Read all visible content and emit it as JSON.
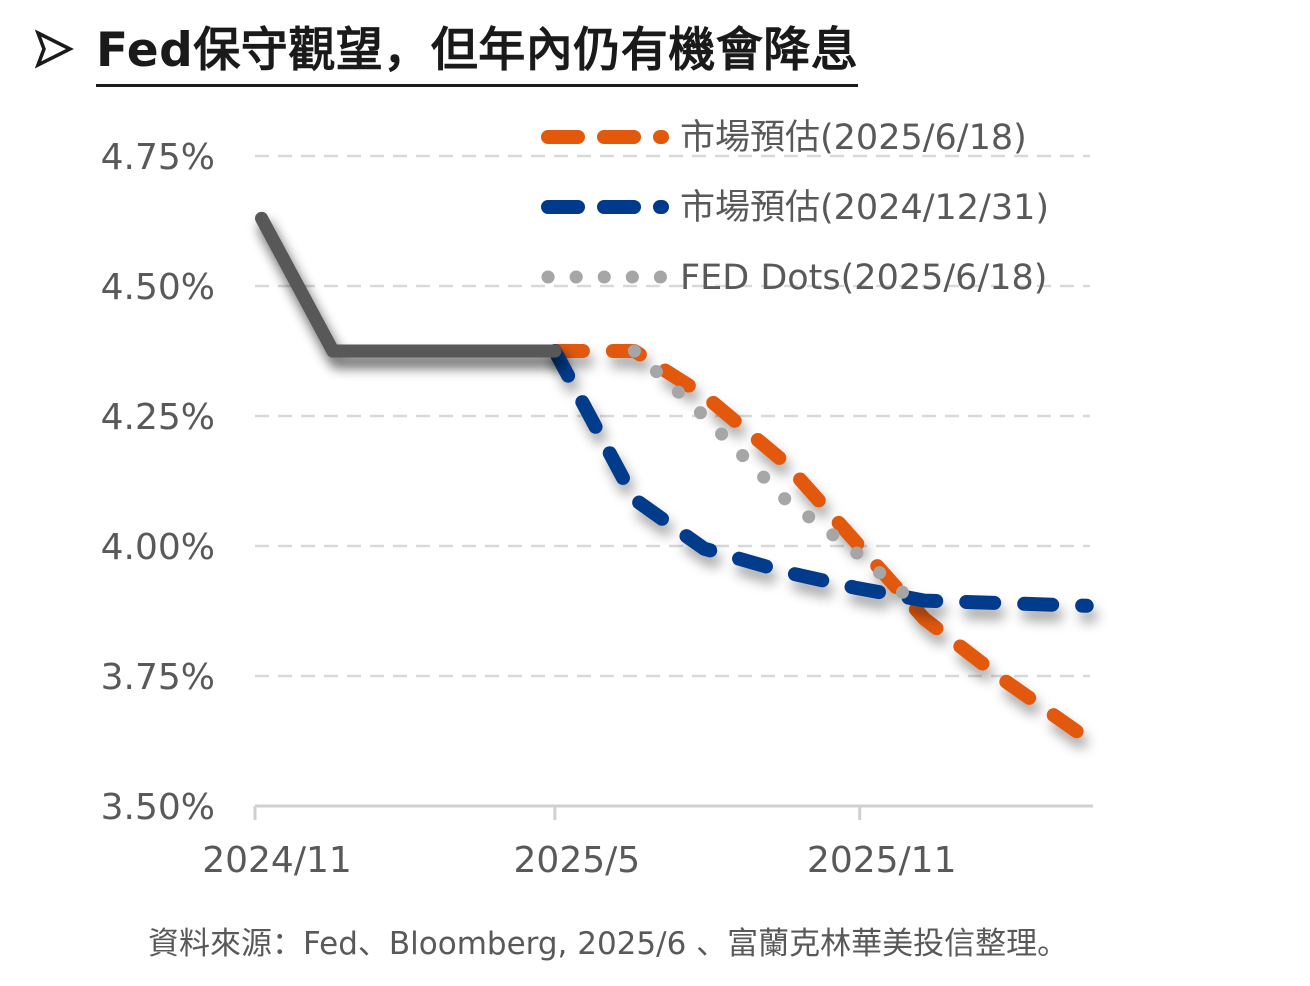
{
  "header": {
    "title": "Fed保守觀望，但年內仍有機會降息"
  },
  "source": "資料來源：Fed、Bloomberg, 2025/6 、富蘭克林華美投信整理。",
  "colors": {
    "actual": "#595959",
    "market_2025": "#E2590C",
    "market_2024": "#003A8C",
    "fed_dots": "#A6A6A6",
    "grid": "#D9D9D9",
    "text": "#595959"
  },
  "chart_data": {
    "type": "line",
    "title": "",
    "xlabel": "",
    "ylabel": "",
    "x_ticks": [
      "2024/11",
      "2025/5",
      "2025/11"
    ],
    "x_domain": [
      "2024-11-01",
      "2026-03-20"
    ],
    "y_ticks": [
      "4.75%",
      "4.50%",
      "4.25%",
      "4.00%",
      "3.75%",
      "3.50%"
    ],
    "ylim": [
      3.5,
      4.75
    ],
    "grid": true,
    "legend_position": "top-right",
    "series": [
      {
        "name": "",
        "color": "#595959",
        "style": "solid",
        "points": [
          [
            "2024-11-05",
            4.63
          ],
          [
            "2024-12-18",
            4.375
          ],
          [
            "2025-05-01",
            4.375
          ]
        ]
      },
      {
        "name": "市場預估(2025/6/18)",
        "color": "#E2590C",
        "style": "dashed",
        "points": [
          [
            "2025-05-01",
            4.375
          ],
          [
            "2025-06-18",
            4.375
          ],
          [
            "2025-07-30",
            4.29
          ],
          [
            "2025-09-17",
            4.16
          ],
          [
            "2025-10-29",
            4.01
          ],
          [
            "2025-12-10",
            3.86
          ],
          [
            "2026-01-28",
            3.74
          ],
          [
            "2026-03-18",
            3.63
          ]
        ]
      },
      {
        "name": "市場預估(2024/12/31)",
        "color": "#003A8C",
        "style": "dashed",
        "points": [
          [
            "2025-05-01",
            4.375
          ],
          [
            "2025-06-18",
            4.09
          ],
          [
            "2025-07-30",
            3.995
          ],
          [
            "2025-09-17",
            3.95
          ],
          [
            "2025-10-29",
            3.92
          ],
          [
            "2025-12-10",
            3.895
          ],
          [
            "2026-01-28",
            3.89
          ],
          [
            "2026-03-18",
            3.885
          ]
        ]
      },
      {
        "name": "FED Dots(2025/6/18)",
        "color": "#A6A6A6",
        "style": "dotted",
        "points": [
          [
            "2025-06-18",
            4.375
          ],
          [
            "2025-07-30",
            4.25
          ],
          [
            "2025-09-17",
            4.09
          ],
          [
            "2025-10-29",
            3.99
          ],
          [
            "2025-12-10",
            3.875
          ]
        ]
      }
    ]
  }
}
